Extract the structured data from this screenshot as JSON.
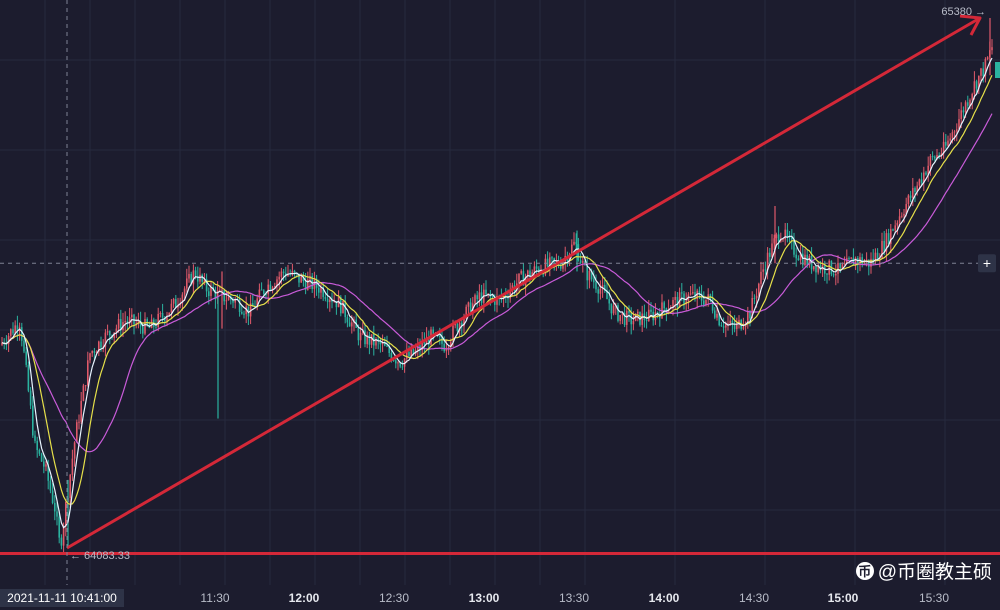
{
  "chart_data": {
    "type": "candlestick",
    "title": "",
    "x_ticks": [
      {
        "label": "11:30",
        "bold": false
      },
      {
        "label": "12:00",
        "bold": true
      },
      {
        "label": "12:30",
        "bold": false
      },
      {
        "label": "13:00",
        "bold": true
      },
      {
        "label": "13:30",
        "bold": false
      },
      {
        "label": "14:00",
        "bold": true
      },
      {
        "label": "14:30",
        "bold": false
      },
      {
        "label": "15:00",
        "bold": true
      },
      {
        "label": "15:30",
        "bold": false
      }
    ],
    "crosshair_time": "2021-11-11 10:41:00",
    "low_label": "← 64083.33",
    "high_label": "65380 →",
    "low_price": 64083.33,
    "high_price": 65380,
    "crosshair_price": 64780,
    "price_path": [
      [
        0,
        64580
      ],
      [
        20,
        64640
      ],
      [
        35,
        64330
      ],
      [
        45,
        64280
      ],
      [
        55,
        64180
      ],
      [
        60,
        64083.33
      ],
      [
        75,
        64350
      ],
      [
        90,
        64560
      ],
      [
        105,
        64600
      ],
      [
        125,
        64640
      ],
      [
        150,
        64620
      ],
      [
        175,
        64680
      ],
      [
        195,
        64760
      ],
      [
        205,
        64720
      ],
      [
        220,
        64700
      ],
      [
        235,
        64690
      ],
      [
        250,
        64660
      ],
      [
        265,
        64720
      ],
      [
        285,
        64760
      ],
      [
        300,
        64740
      ],
      [
        320,
        64720
      ],
      [
        340,
        64680
      ],
      [
        360,
        64600
      ],
      [
        380,
        64580
      ],
      [
        400,
        64540
      ],
      [
        415,
        64560
      ],
      [
        430,
        64600
      ],
      [
        445,
        64580
      ],
      [
        460,
        64640
      ],
      [
        480,
        64700
      ],
      [
        500,
        64690
      ],
      [
        520,
        64740
      ],
      [
        540,
        64770
      ],
      [
        560,
        64780
      ],
      [
        575,
        64830
      ],
      [
        585,
        64760
      ],
      [
        600,
        64720
      ],
      [
        615,
        64660
      ],
      [
        630,
        64640
      ],
      [
        650,
        64650
      ],
      [
        670,
        64680
      ],
      [
        690,
        64700
      ],
      [
        710,
        64690
      ],
      [
        720,
        64640
      ],
      [
        735,
        64620
      ],
      [
        750,
        64660
      ],
      [
        765,
        64780
      ],
      [
        780,
        64860
      ],
      [
        795,
        64810
      ],
      [
        810,
        64780
      ],
      [
        825,
        64770
      ],
      [
        840,
        64760
      ],
      [
        855,
        64790
      ],
      [
        870,
        64780
      ],
      [
        885,
        64830
      ],
      [
        900,
        64900
      ],
      [
        915,
        64960
      ],
      [
        930,
        65030
      ],
      [
        945,
        65060
      ],
      [
        960,
        65140
      ],
      [
        975,
        65220
      ],
      [
        985,
        65260
      ],
      [
        995,
        65330
      ]
    ],
    "trend_line": {
      "from": [
        67,
        64083.33
      ],
      "to": [
        980,
        65380
      ]
    },
    "support_price": 64070,
    "series_colors": {
      "ma_fast": "#e8f4ff",
      "ma_mid": "#e6e04a",
      "ma_slow": "#c95bd9"
    },
    "colors": {
      "up": "#e05a6a",
      "down": "#2bb3a0",
      "trend": "#d42838",
      "grid": "#262a3e",
      "crosshair": "#7e8294",
      "background": "#1c1c2e"
    }
  },
  "watermark": {
    "icon": "币",
    "text": "@币圈教主硕"
  },
  "plus_icon": "+"
}
